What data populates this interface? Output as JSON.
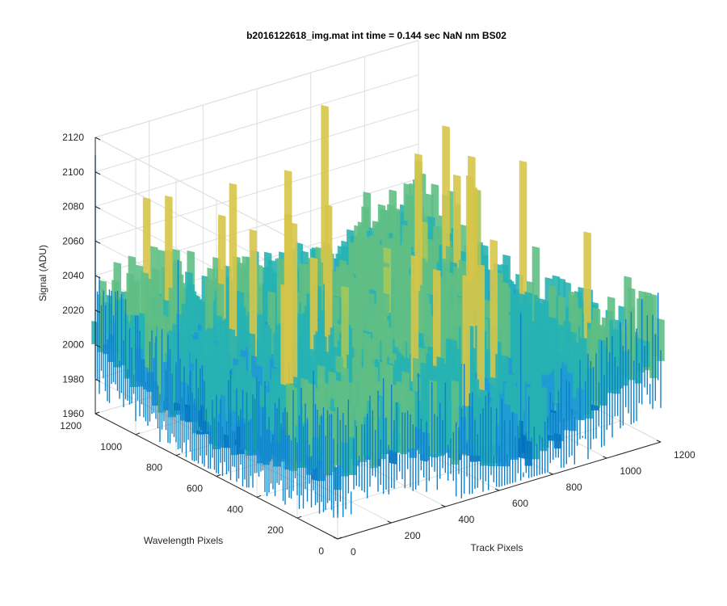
{
  "chart_data": {
    "type": "surface",
    "title": "b2016122618_img.mat int time = 0.144 sec  NaN nm BS02",
    "zlabel": "Signal (ADU)",
    "xlabel": "Track Pixels",
    "ylabel": "Wavelength Pixels",
    "zlim": [
      1960,
      2120
    ],
    "xlim": [
      0,
      1200
    ],
    "ylim": [
      0,
      1200
    ],
    "z_ticks": [
      "1960",
      "1980",
      "2000",
      "2020",
      "2040",
      "2060",
      "2080",
      "2100",
      "2120"
    ],
    "x_ticks": [
      "0",
      "200",
      "400",
      "600",
      "800",
      "1000",
      "1200"
    ],
    "y_ticks": [
      "0",
      "200",
      "400",
      "600",
      "800",
      "1000",
      "1200"
    ],
    "surface_description": "Noisy detector frame; signal mostly 1995-2050 ADU with spikes up to ~2115 and dips near 1965",
    "colormap": [
      "#0072bd",
      "#1f9ad6",
      "#27b3b3",
      "#5fbf85",
      "#a5c85a",
      "#d6c64a"
    ]
  }
}
